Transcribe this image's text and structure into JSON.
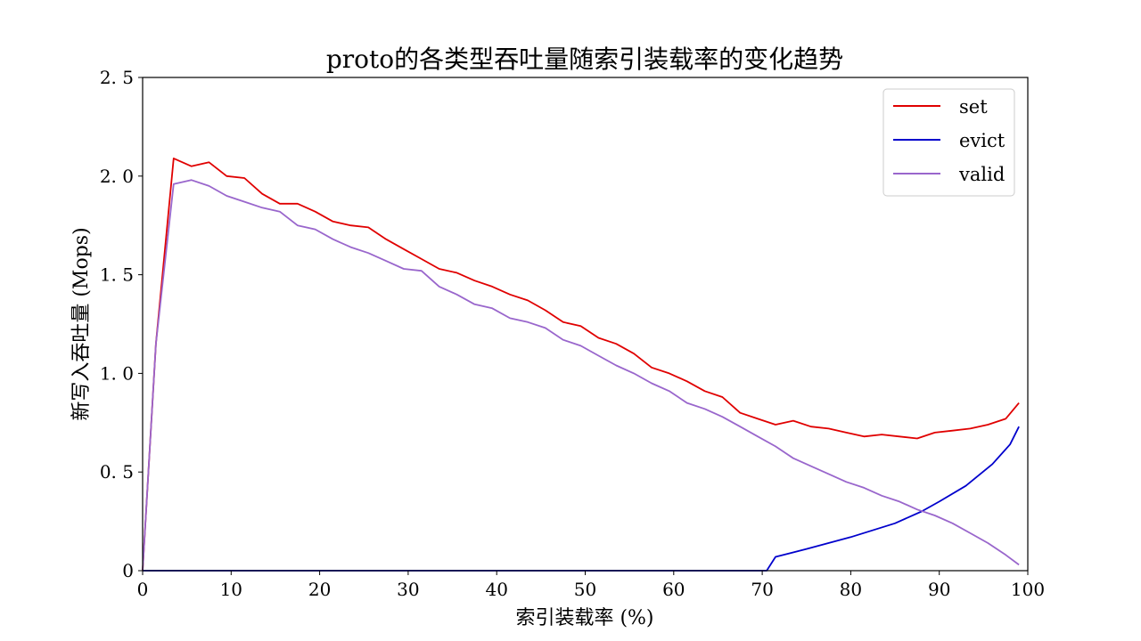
{
  "colors": {
    "set": "#e00000",
    "evict": "#0000cc",
    "valid": "#9966cc",
    "axis": "#000000",
    "background": "#ffffff"
  },
  "chart_data": {
    "type": "line",
    "title": "proto的各类型吞吐量随索引装载率的变化趋势",
    "xlabel": "索引装载率 (%)",
    "ylabel": "新写入吞吐量 (Mops)",
    "xlim": [
      0,
      100
    ],
    "ylim": [
      0,
      2.5
    ],
    "xticks": [
      0,
      10,
      20,
      30,
      40,
      50,
      60,
      70,
      80,
      90,
      100
    ],
    "yticks": [
      0,
      0.5,
      1.0,
      1.5,
      2.0,
      2.5
    ],
    "xtick_labels": [
      "0",
      "10",
      "20",
      "30",
      "40",
      "50",
      "60",
      "70",
      "80",
      "90",
      "100"
    ],
    "ytick_labels": [
      "0",
      "0. 5",
      "1. 0",
      "1. 5",
      "2. 0",
      "2. 5"
    ],
    "grid": false,
    "legend_position": "upper right",
    "series": [
      {
        "name": "set",
        "color_key": "set",
        "x": [
          0,
          1.5,
          3.5,
          5.5,
          7.5,
          9.5,
          11.5,
          13.5,
          15.5,
          17.5,
          19.5,
          21.5,
          23.5,
          25.5,
          27.5,
          29.5,
          31.5,
          33.5,
          35.5,
          37.5,
          39.5,
          41.5,
          43.5,
          45.5,
          47.5,
          49.5,
          51.5,
          53.5,
          55.5,
          57.5,
          59.5,
          61.5,
          63.5,
          65.5,
          67.5,
          69.5,
          71.5,
          73.5,
          75.5,
          77.5,
          79.5,
          81.5,
          83.5,
          85.5,
          87.5,
          89.5,
          91.5,
          93.5,
          95.5,
          97.5,
          99
        ],
        "y": [
          0,
          1.15,
          2.09,
          2.05,
          2.07,
          2.0,
          1.99,
          1.91,
          1.86,
          1.86,
          1.82,
          1.77,
          1.75,
          1.74,
          1.68,
          1.63,
          1.58,
          1.53,
          1.51,
          1.47,
          1.44,
          1.4,
          1.37,
          1.32,
          1.26,
          1.24,
          1.18,
          1.15,
          1.1,
          1.03,
          1.0,
          0.96,
          0.91,
          0.88,
          0.8,
          0.77,
          0.74,
          0.76,
          0.73,
          0.72,
          0.7,
          0.68,
          0.69,
          0.68,
          0.67,
          0.7,
          0.71,
          0.72,
          0.74,
          0.77,
          0.85
        ]
      },
      {
        "name": "evict",
        "color_key": "evict",
        "x": [
          0,
          10,
          20,
          30,
          40,
          50,
          60,
          70,
          70.5,
          71.5,
          75,
          80,
          85,
          88,
          90,
          93,
          96,
          98,
          99
        ],
        "y": [
          0,
          0,
          0,
          0,
          0,
          0,
          0,
          0,
          0,
          0.07,
          0.11,
          0.17,
          0.24,
          0.3,
          0.35,
          0.43,
          0.54,
          0.64,
          0.73
        ]
      },
      {
        "name": "valid",
        "color_key": "valid",
        "x": [
          0,
          1.5,
          3.5,
          5.5,
          7.5,
          9.5,
          11.5,
          13.5,
          15.5,
          17.5,
          19.5,
          21.5,
          23.5,
          25.5,
          27.5,
          29.5,
          31.5,
          33.5,
          35.5,
          37.5,
          39.5,
          41.5,
          43.5,
          45.5,
          47.5,
          49.5,
          51.5,
          53.5,
          55.5,
          57.5,
          59.5,
          61.5,
          63.5,
          65.5,
          67.5,
          69.5,
          71.5,
          73.5,
          75.5,
          77.5,
          79.5,
          81.5,
          83.5,
          85.5,
          87.5,
          89.5,
          91.5,
          93.5,
          95.5,
          97.5,
          99
        ],
        "y": [
          0,
          1.15,
          1.96,
          1.98,
          1.95,
          1.9,
          1.87,
          1.84,
          1.82,
          1.75,
          1.73,
          1.68,
          1.64,
          1.61,
          1.57,
          1.53,
          1.52,
          1.44,
          1.4,
          1.35,
          1.33,
          1.28,
          1.26,
          1.23,
          1.17,
          1.14,
          1.09,
          1.04,
          1.0,
          0.95,
          0.91,
          0.85,
          0.82,
          0.78,
          0.73,
          0.68,
          0.63,
          0.57,
          0.53,
          0.49,
          0.45,
          0.42,
          0.38,
          0.35,
          0.31,
          0.28,
          0.24,
          0.19,
          0.14,
          0.08,
          0.03
        ]
      }
    ]
  }
}
